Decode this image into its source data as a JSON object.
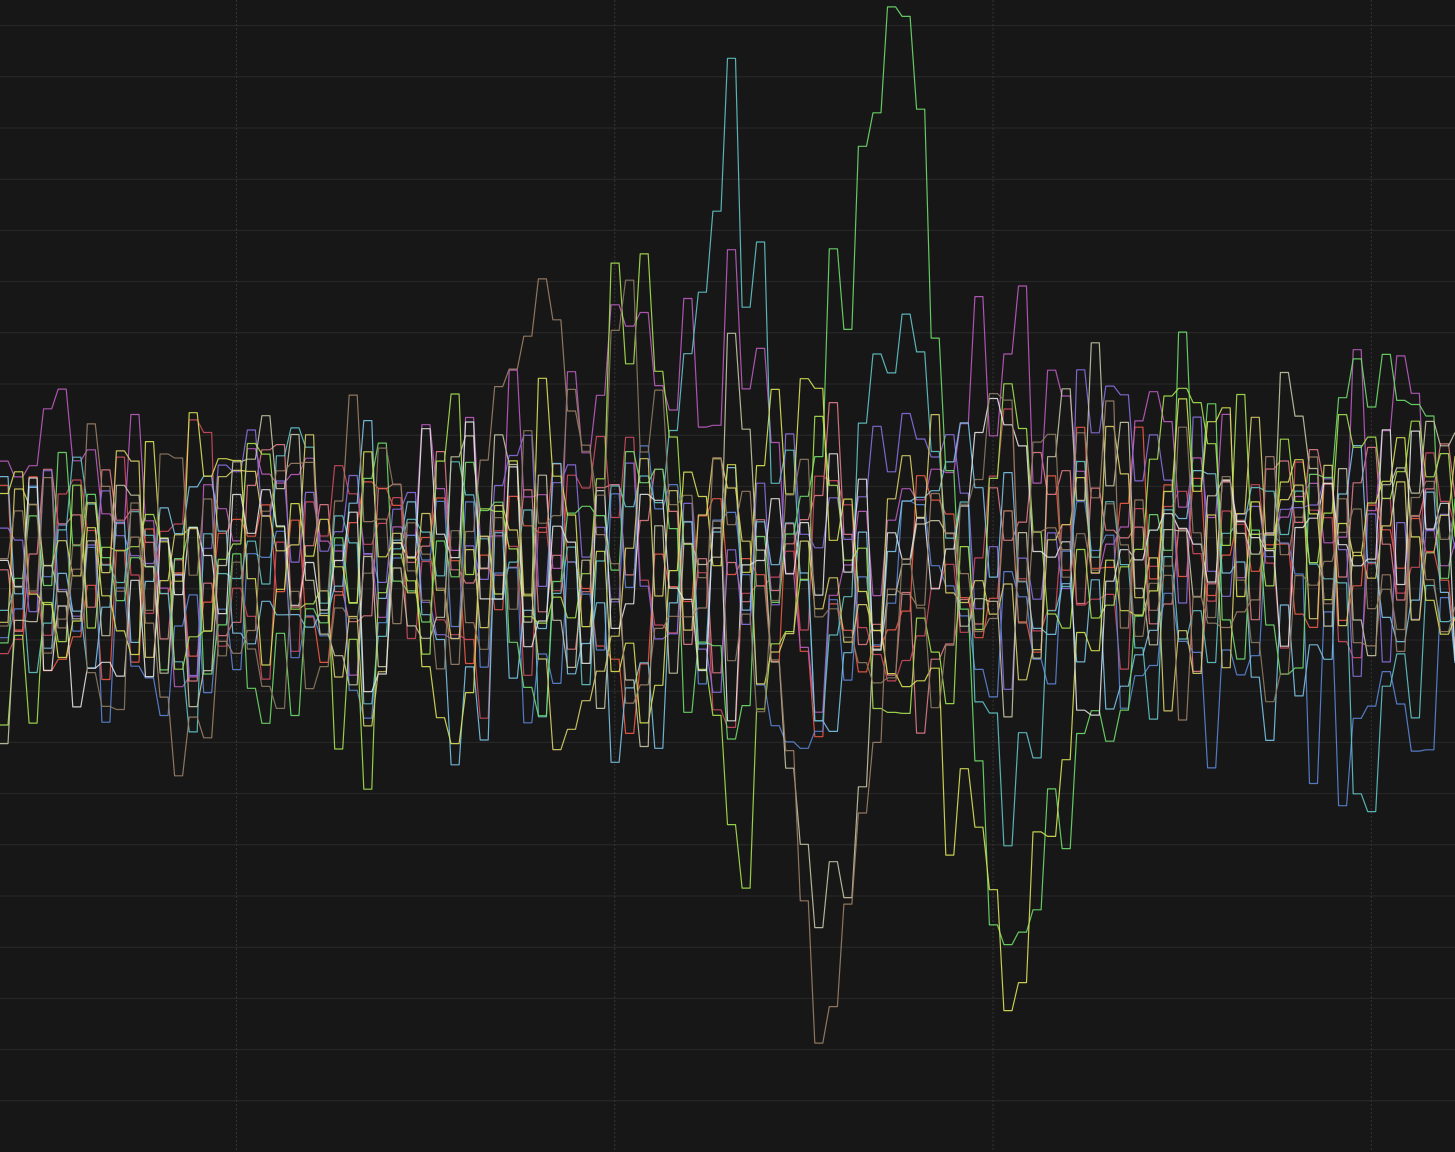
{
  "chart_data": {
    "type": "line",
    "title": "",
    "xlabel": "",
    "ylabel": "",
    "grid": true,
    "legend": "none",
    "xlim": [
      0,
      400
    ],
    "ylim": [
      -45,
      45
    ],
    "colors": {
      "background": "#171717",
      "gridline": "#2a2a2a",
      "vertical_gridline": "#353535",
      "series": [
        "#e07b86",
        "#ee5a45",
        "#cf4a5f",
        "#bb5cc0",
        "#8a6fe0",
        "#5b85d6",
        "#62c3c7",
        "#7ac3e6",
        "#6fdc6a",
        "#a5e24f",
        "#d9e155",
        "#d9ce68",
        "#c4c4a4",
        "#e2e2e2",
        "#9c7f67",
        "#8c7a60"
      ]
    },
    "series_count": 16,
    "series": [
      {
        "x": [
          0,
          25,
          50,
          75,
          100,
          125,
          150,
          175,
          200,
          225,
          250,
          275,
          300,
          325,
          350,
          375,
          400
        ],
        "values": [
          -2,
          3,
          -4,
          5,
          -1,
          6,
          -3,
          4,
          -2,
          8,
          -5,
          3,
          6,
          -4,
          7,
          2,
          5
        ]
      },
      {
        "x": [
          0,
          25,
          50,
          75,
          100,
          125,
          150,
          175,
          200,
          225,
          250,
          275,
          300,
          325,
          350,
          375,
          400
        ],
        "values": [
          4,
          -6,
          2,
          -3,
          5,
          -2,
          7,
          -8,
          3,
          -5,
          4,
          -2,
          5,
          3,
          -1,
          6,
          -3
        ]
      },
      {
        "x": [
          0,
          25,
          50,
          75,
          100,
          125,
          150,
          175,
          200,
          225,
          250,
          275,
          300,
          325,
          350,
          375,
          400
        ],
        "values": [
          -5,
          2,
          6,
          -4,
          3,
          -7,
          2,
          5,
          -9,
          3,
          -3,
          7,
          -4,
          5,
          2,
          -2,
          4
        ]
      },
      {
        "x": [
          0,
          25,
          50,
          75,
          100,
          125,
          150,
          175,
          200,
          225,
          250,
          275,
          300,
          325,
          350,
          375,
          400
        ],
        "values": [
          6,
          14,
          -2,
          4,
          -3,
          10,
          7,
          16,
          20,
          -5,
          12,
          18,
          8,
          10,
          6,
          12,
          7
        ]
      },
      {
        "x": [
          0,
          25,
          50,
          75,
          100,
          125,
          150,
          175,
          200,
          225,
          250,
          275,
          300,
          325,
          350,
          375,
          400
        ],
        "values": [
          -3,
          5,
          -1,
          8,
          2,
          -4,
          6,
          3,
          -2,
          7,
          9,
          -3,
          11,
          5,
          8,
          -1,
          9
        ]
      },
      {
        "x": [
          0,
          25,
          50,
          75,
          100,
          125,
          150,
          175,
          200,
          225,
          250,
          275,
          300,
          325,
          350,
          375,
          400
        ],
        "values": [
          1,
          -4,
          -9,
          3,
          -6,
          2,
          -8,
          4,
          -3,
          -10,
          5,
          -7,
          2,
          -12,
          -4,
          -15,
          -8
        ]
      },
      {
        "x": [
          0,
          25,
          50,
          75,
          100,
          125,
          150,
          175,
          200,
          225,
          250,
          275,
          300,
          325,
          350,
          375,
          400
        ],
        "values": [
          -6,
          4,
          -8,
          7,
          -3,
          9,
          -5,
          2,
          35,
          -14,
          28,
          -20,
          6,
          -9,
          4,
          -11,
          3
        ]
      },
      {
        "x": [
          0,
          25,
          50,
          75,
          100,
          125,
          150,
          175,
          200,
          225,
          250,
          275,
          300,
          325,
          350,
          375,
          400
        ],
        "values": [
          3,
          -2,
          8,
          -5,
          6,
          -9,
          4,
          -12,
          7,
          -6,
          3,
          8,
          -4,
          6,
          -7,
          5,
          -2
        ]
      },
      {
        "x": [
          0,
          25,
          50,
          75,
          100,
          125,
          150,
          175,
          200,
          225,
          250,
          275,
          300,
          325,
          350,
          375,
          400
        ],
        "values": [
          -4,
          6,
          -2,
          -9,
          5,
          3,
          -6,
          9,
          -14,
          18,
          44,
          -30,
          -12,
          14,
          -8,
          12,
          6
        ]
      },
      {
        "x": [
          0,
          25,
          50,
          75,
          100,
          125,
          150,
          175,
          200,
          225,
          250,
          275,
          300,
          325,
          350,
          375,
          400
        ],
        "values": [
          -8,
          2,
          -5,
          6,
          -12,
          8,
          -4,
          25,
          -22,
          7,
          -10,
          9,
          -6,
          14,
          3,
          10,
          4
        ]
      },
      {
        "x": [
          0,
          25,
          50,
          75,
          100,
          125,
          150,
          175,
          200,
          225,
          250,
          275,
          300,
          325,
          350,
          375,
          400
        ],
        "values": [
          5,
          -3,
          8,
          -2,
          4,
          -7,
          10,
          -5,
          6,
          12,
          -8,
          -34,
          -6,
          11,
          2,
          7,
          -3
        ]
      },
      {
        "x": [
          0,
          25,
          50,
          75,
          100,
          125,
          150,
          175,
          200,
          225,
          250,
          275,
          300,
          325,
          350,
          375,
          400
        ],
        "values": [
          -2,
          7,
          -4,
          9,
          -6,
          3,
          -8,
          5,
          2,
          -6,
          9,
          -4,
          7,
          -5,
          8,
          -3,
          6
        ]
      },
      {
        "x": [
          0,
          25,
          50,
          75,
          100,
          125,
          150,
          175,
          200,
          225,
          250,
          275,
          300,
          325,
          350,
          375,
          400
        ],
        "values": [
          -10,
          4,
          -6,
          9,
          -3,
          6,
          3,
          -7,
          12,
          -28,
          10,
          -6,
          13,
          -4,
          10,
          -3,
          8
        ]
      },
      {
        "x": [
          0,
          25,
          50,
          75,
          100,
          125,
          150,
          175,
          200,
          225,
          250,
          275,
          300,
          325,
          350,
          375,
          400
        ],
        "values": [
          4,
          -7,
          2,
          6,
          -4,
          8,
          -3,
          5,
          -6,
          7,
          -2,
          9,
          -5,
          4,
          -3,
          6,
          1
        ]
      },
      {
        "x": [
          0,
          25,
          50,
          75,
          100,
          125,
          150,
          175,
          200,
          225,
          250,
          275,
          300,
          325,
          350,
          375,
          400
        ],
        "values": [
          -1,
          5,
          -9,
          3,
          7,
          -5,
          22,
          -10,
          6,
          -30,
          4,
          -2,
          8,
          -5,
          6,
          -4,
          3
        ]
      },
      {
        "x": [
          0,
          25,
          50,
          75,
          100,
          125,
          150,
          175,
          200,
          225,
          250,
          275,
          300,
          325,
          350,
          375,
          400
        ],
        "values": [
          2,
          -5,
          4,
          -8,
          6,
          -3,
          8,
          18,
          -6,
          4,
          -7,
          10,
          -3,
          6,
          -8,
          4,
          -2
        ]
      }
    ]
  }
}
